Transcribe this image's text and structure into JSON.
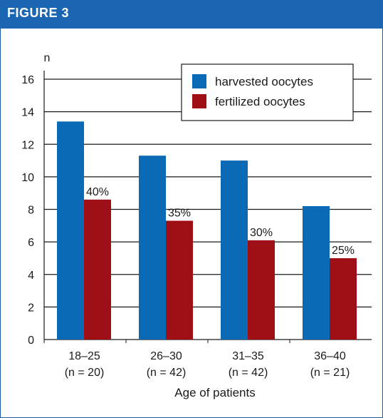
{
  "figure_label": "FIGURE 3",
  "colors": {
    "header": "#1a66b3",
    "harvested": "#0a6ab5",
    "fertilized": "#9e0f16",
    "grid": "#1a1a1a"
  },
  "chart_data": {
    "type": "bar",
    "ylabel": "n",
    "xlabel": "Age of patients",
    "ylim": [
      0,
      16
    ],
    "yticks": [
      0,
      2,
      4,
      6,
      8,
      10,
      12,
      14,
      16
    ],
    "grid": true,
    "legend_position": "top-right",
    "categories": [
      "18–25",
      "26–30",
      "31–35",
      "36–40"
    ],
    "category_sublabels": [
      "(n = 20)",
      "(n = 42)",
      "(n = 42)",
      "(n = 21)"
    ],
    "series": [
      {
        "name": "harvested oocytes",
        "values": [
          13.4,
          11.3,
          11.0,
          8.2
        ]
      },
      {
        "name": "fertilized oocytes",
        "values": [
          8.6,
          7.3,
          6.1,
          5.0
        ]
      }
    ],
    "annotations": [
      "40%",
      "35%",
      "30%",
      "25%"
    ]
  }
}
